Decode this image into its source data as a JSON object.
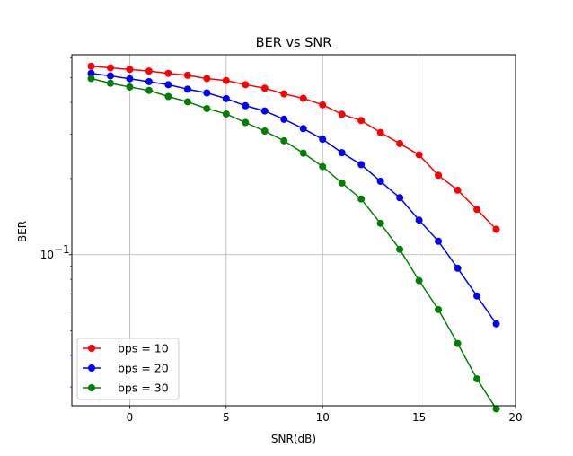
{
  "chart_data": {
    "type": "line",
    "title": "BER vs SNR",
    "xlabel": "SNR(dB)",
    "ylabel": "BER",
    "x_scale": "linear",
    "y_scale": "log",
    "xlim": [
      -3,
      20
    ],
    "ylim": [
      0.0253,
      0.617
    ],
    "xticks": [
      0,
      5,
      10,
      15,
      20
    ],
    "xtick_labels": [
      "0",
      "5",
      "10",
      "15",
      "20"
    ],
    "yticks": [
      0.1
    ],
    "ytick_labels": [
      "10",
      "−1"
    ],
    "grid": true,
    "legend_position": "lower-left",
    "x": [
      -2,
      -1,
      0,
      1,
      2,
      3,
      4,
      5,
      6,
      7,
      8,
      9,
      10,
      11,
      12,
      13,
      14,
      15,
      16,
      17,
      18,
      19
    ],
    "series": [
      {
        "name": "bps = 10",
        "color": "#ff0000",
        "values": [
          0.556,
          0.548,
          0.54,
          0.532,
          0.521,
          0.512,
          0.497,
          0.488,
          0.47,
          0.455,
          0.432,
          0.415,
          0.391,
          0.359,
          0.339,
          0.304,
          0.275,
          0.248,
          0.206,
          0.18,
          0.151,
          0.126
        ]
      },
      {
        "name": "bps = 20",
        "color": "#0000ff",
        "values": [
          0.521,
          0.509,
          0.496,
          0.483,
          0.47,
          0.451,
          0.436,
          0.414,
          0.388,
          0.37,
          0.343,
          0.315,
          0.286,
          0.253,
          0.227,
          0.195,
          0.168,
          0.137,
          0.113,
          0.0884,
          0.0687,
          0.0533
        ]
      },
      {
        "name": "bps = 30",
        "color": "#008000",
        "values": [
          0.497,
          0.476,
          0.46,
          0.446,
          0.422,
          0.402,
          0.378,
          0.36,
          0.333,
          0.308,
          0.282,
          0.252,
          0.223,
          0.192,
          0.166,
          0.133,
          0.105,
          0.079,
          0.0607,
          0.0446,
          0.0323,
          0.0246
        ]
      }
    ]
  }
}
